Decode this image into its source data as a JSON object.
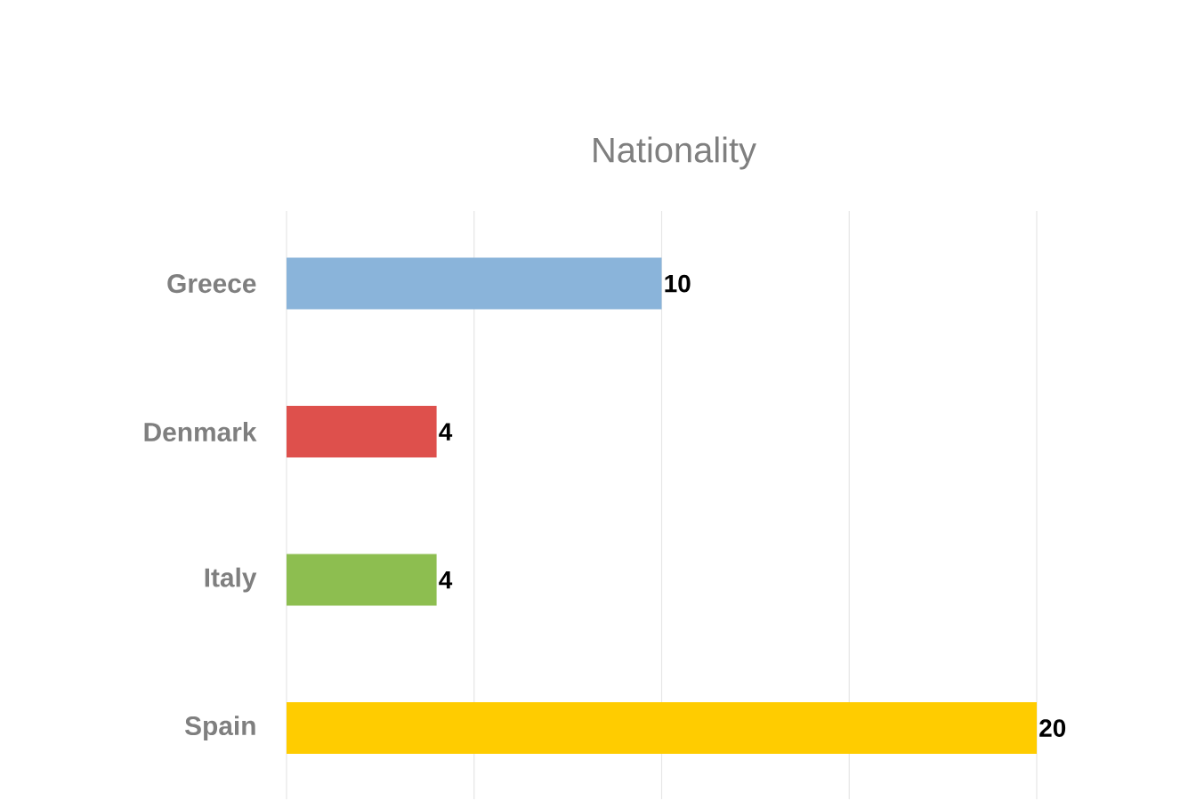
{
  "chart_data": {
    "type": "bar",
    "orientation": "horizontal",
    "title": "Nationality",
    "categories": [
      "Greece",
      "Denmark",
      "Italy",
      "Spain"
    ],
    "values": [
      10,
      4,
      4,
      20
    ],
    "colors": [
      "#8ab4da",
      "#de504c",
      "#8dbe50",
      "#ffcc00"
    ],
    "xlim": [
      0,
      20
    ],
    "xticks": [
      {
        "value": 0,
        "label": null
      },
      {
        "value": 5,
        "label": null
      },
      {
        "value": 10,
        "label": null
      },
      {
        "value": 15,
        "label": null
      },
      {
        "value": 20,
        "label": null
      }
    ],
    "tick_labels": "y",
    "grid": "x",
    "data_labels": true
  }
}
